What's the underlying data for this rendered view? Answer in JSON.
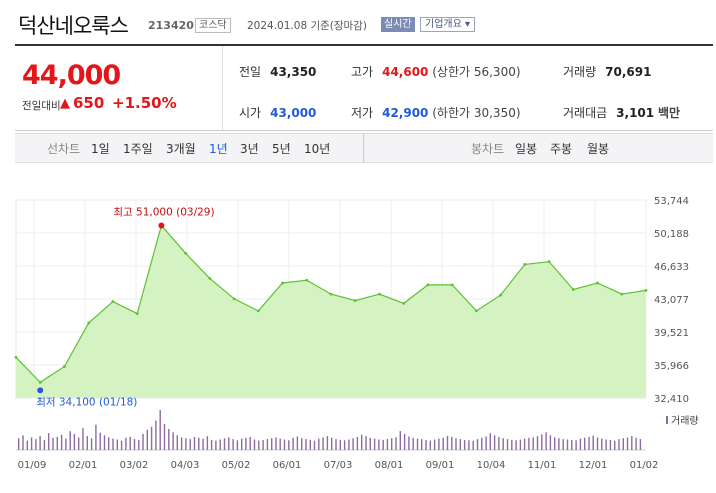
{
  "header": {
    "stock_name": "덕산네오룩스",
    "stock_code": "213420",
    "market_badge": "코스닥",
    "date_text": "2024.01.08  기준(장마감)",
    "realtime_button": "실시간",
    "company_button": "기업개요 ▾"
  },
  "price": {
    "current": "44,000",
    "change_label": "전일대비",
    "change_arrow": "▲",
    "change_value": "650",
    "change_percent": "+1.50%"
  },
  "summary": {
    "prev_close": {
      "label": "전일",
      "value": "43,350"
    },
    "high": {
      "label": "고가",
      "value": "44,600",
      "sub": "(상한가 56,300)"
    },
    "volume": {
      "label": "거래량",
      "value": "70,691"
    },
    "open": {
      "label": "시가",
      "value": "43,000"
    },
    "low": {
      "label": "저가",
      "value": "42,900",
      "sub": "(하한가 30,350)"
    },
    "amount": {
      "label": "거래대금",
      "value": "3,101",
      "unit": "백만"
    }
  },
  "periods": {
    "line_title": "선차트",
    "line_items": [
      "1일",
      "1주일",
      "3개월",
      "1년",
      "3년",
      "5년",
      "10년"
    ],
    "selected": "1년",
    "candle_title": "봉차트",
    "candle_items": [
      "일봉",
      "주봉",
      "월봉"
    ]
  },
  "colors": {
    "up": "#e4161a",
    "down": "#1f5bd8",
    "line": "#5cc22f",
    "fill": "#d5f3c2"
  },
  "chart_data": {
    "type": "area",
    "title": "",
    "xlabel": "",
    "ylabel": "",
    "ylim": [
      32410,
      53744
    ],
    "y_ticks": [
      "53,744",
      "50,188",
      "46,633",
      "43,077",
      "39,521",
      "35,966",
      "32,410"
    ],
    "x_ticks": [
      "01/09",
      "02/01",
      "03/02",
      "04/03",
      "05/02",
      "06/01",
      "07/03",
      "08/01",
      "09/01",
      "10/04",
      "11/01",
      "12/01",
      "01/02"
    ],
    "x": [
      "01/09",
      "01/18",
      "02/01",
      "02/15",
      "03/02",
      "03/15",
      "03/29",
      "04/03",
      "04/14",
      "05/02",
      "05/15",
      "06/01",
      "06/15",
      "07/03",
      "07/17",
      "08/01",
      "08/15",
      "09/01",
      "09/15",
      "10/04",
      "10/18",
      "11/01",
      "11/15",
      "12/01",
      "12/15",
      "01/02",
      "01/08"
    ],
    "values": [
      36800,
      34100,
      35800,
      40500,
      42800,
      41500,
      51000,
      48000,
      45300,
      43100,
      41800,
      44800,
      45100,
      43600,
      42900,
      43600,
      42600,
      44600,
      44600,
      41800,
      43500,
      46800,
      47100,
      44100,
      44800,
      43600,
      44000
    ],
    "annotations": {
      "high": {
        "text": "최고 51,000 (03/29)",
        "value": 51000,
        "x": "03/29"
      },
      "low": {
        "text": "최저 34,100 (01/18)",
        "value": 34100,
        "x": "01/18"
      }
    },
    "volume_label": "거래량",
    "volume_values": [
      28,
      35,
      22,
      30,
      26,
      33,
      24,
      40,
      29,
      31,
      36,
      27,
      45,
      38,
      30,
      52,
      33,
      28,
      60,
      41,
      35,
      30,
      27,
      25,
      22,
      29,
      31,
      26,
      24,
      38,
      48,
      55,
      70,
      95,
      62,
      50,
      42,
      35,
      30,
      28,
      26,
      31,
      29,
      27,
      33,
      24,
      22,
      25,
      28,
      30,
      26,
      23,
      27,
      29,
      31,
      25,
      22,
      24,
      26,
      28,
      30,
      27,
      25,
      23,
      29,
      32,
      28,
      26,
      24,
      22,
      27,
      30,
      33,
      29,
      26,
      24,
      23,
      25,
      28,
      31,
      36,
      33,
      29,
      27,
      25,
      24,
      26,
      28,
      30,
      45,
      38,
      32,
      29,
      27,
      26,
      24,
      22,
      25,
      27,
      29,
      33,
      31,
      28,
      26,
      24,
      23,
      22,
      26,
      29,
      32,
      40,
      35,
      31,
      28,
      26,
      24,
      23,
      25,
      27,
      29,
      30,
      33,
      37,
      42,
      35,
      30,
      28,
      26,
      25,
      24,
      23,
      27,
      29,
      31,
      34,
      30,
      27,
      25,
      24,
      22,
      26,
      28,
      30,
      33,
      29,
      26
    ]
  }
}
